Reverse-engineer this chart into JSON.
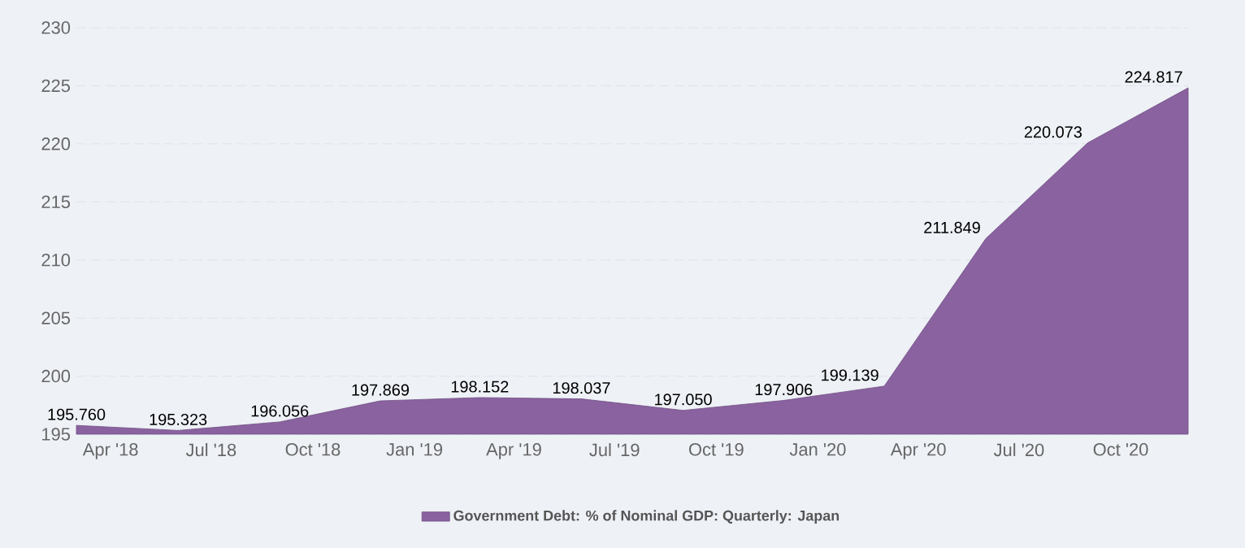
{
  "chart_data": {
    "type": "area",
    "x": [
      "2018-03",
      "2018-06",
      "2018-09",
      "2018-12",
      "2019-03",
      "2019-06",
      "2019-09",
      "2019-12",
      "2020-03",
      "2020-06",
      "2020-09",
      "2020-12"
    ],
    "series": [
      {
        "name": "Government Debt: % of Nominal GDP: Quarterly: Japan",
        "color": "#8a62a0",
        "values": [
          195.76,
          195.323,
          196.056,
          197.869,
          198.152,
          198.037,
          197.05,
          197.906,
          199.139,
          211.849,
          220.073,
          224.817
        ],
        "value_labels": [
          "195.760",
          "195.323",
          "196.056",
          "197.869",
          "198.152",
          "198.037",
          "197.050",
          "197.906",
          "199.139",
          "211.849",
          "220.073",
          "224.817"
        ]
      }
    ],
    "xlim": [
      "2018-03",
      "2020-12"
    ],
    "xticks": [
      {
        "value": "2018-04",
        "label": "Apr '18"
      },
      {
        "value": "2018-07",
        "label": "Jul '18"
      },
      {
        "value": "2018-10",
        "label": "Oct '18"
      },
      {
        "value": "2019-01",
        "label": "Jan '19"
      },
      {
        "value": "2019-04",
        "label": "Apr '19"
      },
      {
        "value": "2019-07",
        "label": "Jul '19"
      },
      {
        "value": "2019-10",
        "label": "Oct '19"
      },
      {
        "value": "2020-01",
        "label": "Jan '20"
      },
      {
        "value": "2020-04",
        "label": "Apr '20"
      },
      {
        "value": "2020-07",
        "label": "Jul '20"
      },
      {
        "value": "2020-10",
        "label": "Oct '20"
      }
    ],
    "ylim": [
      195,
      230
    ],
    "yticks": [
      195,
      200,
      205,
      210,
      215,
      220,
      225,
      230
    ],
    "grid": "y",
    "legend": "bottom"
  }
}
